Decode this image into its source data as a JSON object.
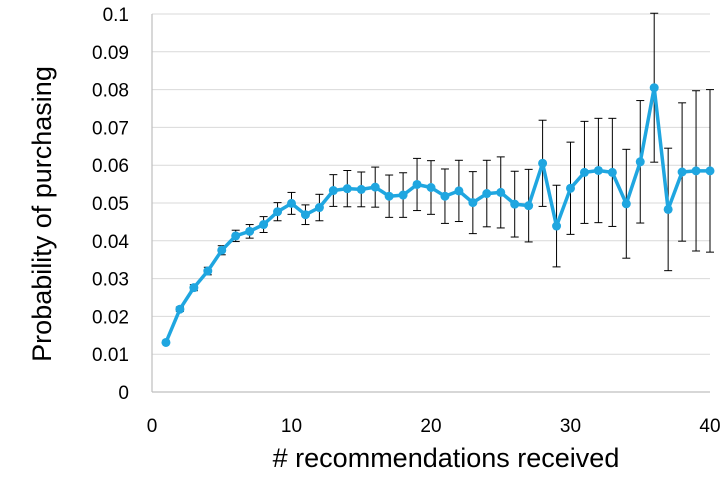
{
  "chart_data": {
    "type": "line",
    "xlabel": "# recommendations received",
    "ylabel": "Probability of purchasing",
    "xlim": [
      0,
      40
    ],
    "ylim": [
      0,
      0.1
    ],
    "x_ticks": [
      "0",
      "10",
      "20",
      "30",
      "40"
    ],
    "y_ticks": [
      "0",
      "0.01",
      "0.02",
      "0.03",
      "0.04",
      "0.05",
      "0.06",
      "0.07",
      "0.08",
      "0.09",
      "0.1"
    ],
    "grid": "horizontal",
    "legend": "none",
    "error_bars": true,
    "series": [
      {
        "color": "#1fa6e0",
        "x": [
          1,
          2,
          3,
          4,
          5,
          6,
          7,
          8,
          9,
          10,
          11,
          12,
          13,
          14,
          15,
          16,
          17,
          18,
          19,
          20,
          21,
          22,
          23,
          24,
          25,
          26,
          27,
          28,
          29,
          30,
          31,
          32,
          33,
          34,
          35,
          36,
          37,
          38,
          39,
          40
        ],
        "y": [
          0.0131,
          0.0219,
          0.0276,
          0.032,
          0.0375,
          0.0413,
          0.0425,
          0.0443,
          0.0477,
          0.0499,
          0.0469,
          0.0488,
          0.0533,
          0.0538,
          0.0536,
          0.0542,
          0.0518,
          0.0521,
          0.0549,
          0.0541,
          0.0518,
          0.0532,
          0.0501,
          0.0525,
          0.0528,
          0.0497,
          0.0493,
          0.0605,
          0.0439,
          0.0539,
          0.0581,
          0.0586,
          0.0581,
          0.0498,
          0.0609,
          0.0805,
          0.0483,
          0.0582,
          0.0585,
          0.0585
        ],
        "err": [
          0.0,
          0.0006,
          0.0008,
          0.001,
          0.0012,
          0.0015,
          0.0018,
          0.0021,
          0.0024,
          0.0029,
          0.0026,
          0.0035,
          0.0042,
          0.0048,
          0.0046,
          0.0053,
          0.0056,
          0.0059,
          0.0069,
          0.0071,
          0.0072,
          0.0081,
          0.0082,
          0.0088,
          0.0094,
          0.0087,
          0.0096,
          0.0114,
          0.0108,
          0.0122,
          0.0135,
          0.0138,
          0.0143,
          0.0144,
          0.0162,
          0.0197,
          0.0162,
          0.0183,
          0.0212,
          0.0215
        ]
      }
    ]
  }
}
